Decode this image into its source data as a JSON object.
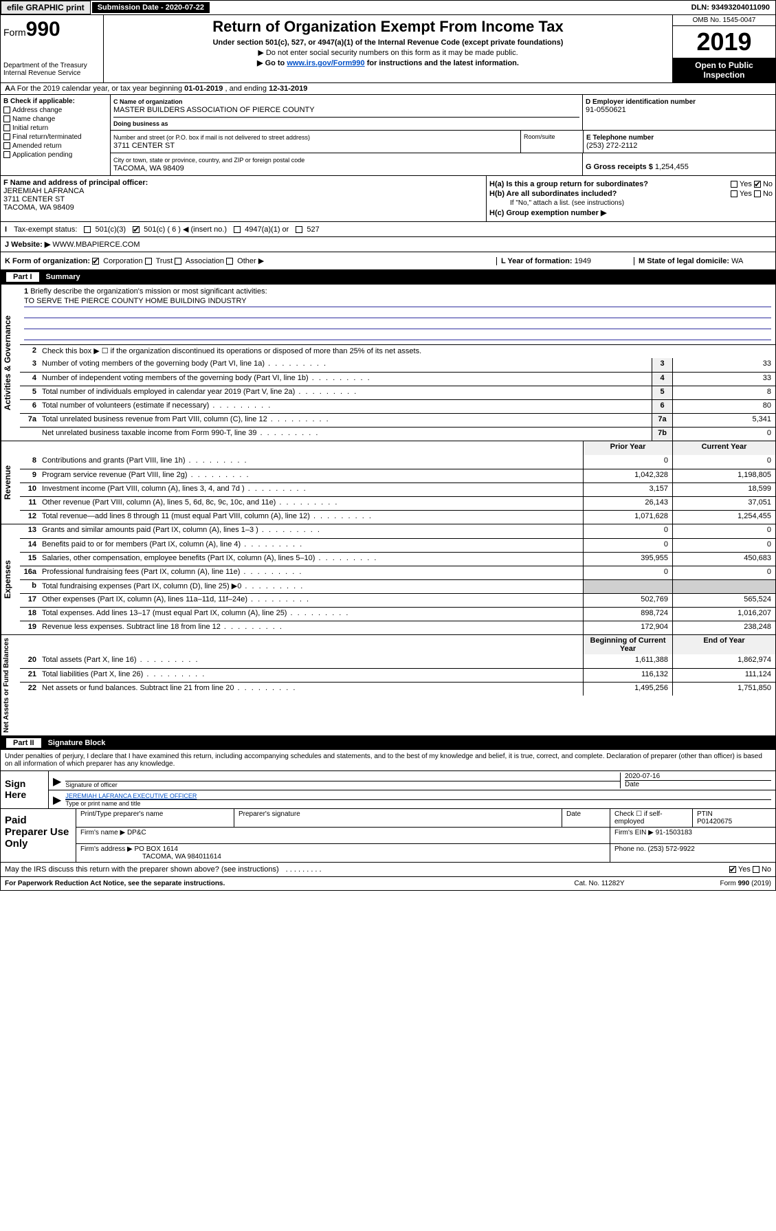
{
  "topbar": {
    "efile": "efile GRAPHIC print",
    "subdate_label": "Submission Date - 2020-07-22",
    "dln": "DLN: 93493204011090"
  },
  "header": {
    "form_prefix": "Form",
    "form_num": "990",
    "dept": "Department of the Treasury",
    "irs": "Internal Revenue Service",
    "title": "Return of Organization Exempt From Income Tax",
    "sub1": "Under section 501(c), 527, or 4947(a)(1) of the Internal Revenue Code (except private foundations)",
    "sub2": "▶ Do not enter social security numbers on this form as it may be made public.",
    "sub3_pre": "▶ Go to ",
    "sub3_link": "www.irs.gov/Form990",
    "sub3_post": " for instructions and the latest information.",
    "omb": "OMB No. 1545-0047",
    "year": "2019",
    "open1": "Open to Public",
    "open2": "Inspection"
  },
  "rowA": {
    "text_pre": "A For the 2019 calendar year, or tax year beginning ",
    "begin": "01-01-2019",
    "mid": " , and ending ",
    "end": "12-31-2019"
  },
  "colB": {
    "label": "B Check if applicable:",
    "opts": [
      "Address change",
      "Name change",
      "Initial return",
      "Final return/terminated",
      "Amended return",
      "Application pending"
    ]
  },
  "colC": {
    "name_lbl": "C Name of organization",
    "name": "MASTER BUILDERS ASSOCIATION OF PIERCE COUNTY",
    "dba_lbl": "Doing business as",
    "dba": "",
    "addr_lbl": "Number and street (or P.O. box if mail is not delivered to street address)",
    "addr": "3711 CENTER ST",
    "room_lbl": "Room/suite",
    "city_lbl": "City or town, state or province, country, and ZIP or foreign postal code",
    "city": "TACOMA, WA  98409"
  },
  "colD": {
    "ein_lbl": "D Employer identification number",
    "ein": "91-0550621",
    "tel_lbl": "E Telephone number",
    "tel": "(253) 272-2112",
    "gross_lbl": "G Gross receipts $ ",
    "gross": "1,254,455"
  },
  "rowF": {
    "lbl": "F Name and address of principal officer:",
    "name": "JEREMIAH LAFRANCA",
    "addr1": "3711 CENTER ST",
    "addr2": "TACOMA, WA  98409"
  },
  "rowH": {
    "ha": "H(a) Is this a group return for subordinates?",
    "hb": "H(b) Are all subordinates included?",
    "hb_note": "If \"No,\" attach a list. (see instructions)",
    "hc": "H(c) Group exemption number ▶"
  },
  "rowI": {
    "lbl": "Tax-exempt status:",
    "o1": "501(c)(3)",
    "o2": "501(c) ( 6 ) ◀ (insert no.)",
    "o3": "4947(a)(1) or",
    "o4": "527"
  },
  "rowJ": {
    "lbl": "J Website: ▶",
    "val": "WWW.MBAPIERCE.COM"
  },
  "rowK": {
    "lbl": "K Form of organization:",
    "opts": [
      "Corporation",
      "Trust",
      "Association",
      "Other ▶"
    ],
    "L_lbl": "L Year of formation: ",
    "L_val": "1949",
    "M_lbl": "M State of legal domicile: ",
    "M_val": "WA"
  },
  "part1": {
    "label": "Part I",
    "title": "Summary"
  },
  "summary": {
    "q1_lbl": "Briefly describe the organization's mission or most significant activities:",
    "q1_val": "TO SERVE THE PIERCE COUNTY HOME BUILDING INDUSTRY",
    "q2": "Check this box ▶ ☐ if the organization discontinued its operations or disposed of more than 25% of its net assets.",
    "rows_gov": [
      {
        "n": "3",
        "d": "Number of voting members of the governing body (Part VI, line 1a)",
        "c": "3",
        "v": "33"
      },
      {
        "n": "4",
        "d": "Number of independent voting members of the governing body (Part VI, line 1b)",
        "c": "4",
        "v": "33"
      },
      {
        "n": "5",
        "d": "Total number of individuals employed in calendar year 2019 (Part V, line 2a)",
        "c": "5",
        "v": "8"
      },
      {
        "n": "6",
        "d": "Total number of volunteers (estimate if necessary)",
        "c": "6",
        "v": "80"
      },
      {
        "n": "7a",
        "d": "Total unrelated business revenue from Part VIII, column (C), line 12",
        "c": "7a",
        "v": "5,341"
      },
      {
        "n": "",
        "d": "Net unrelated business taxable income from Form 990-T, line 39",
        "c": "7b",
        "v": "0"
      }
    ],
    "py_hdr": "Prior Year",
    "cy_hdr": "Current Year",
    "rows_rev": [
      {
        "n": "8",
        "d": "Contributions and grants (Part VIII, line 1h)",
        "py": "0",
        "cy": "0"
      },
      {
        "n": "9",
        "d": "Program service revenue (Part VIII, line 2g)",
        "py": "1,042,328",
        "cy": "1,198,805"
      },
      {
        "n": "10",
        "d": "Investment income (Part VIII, column (A), lines 3, 4, and 7d )",
        "py": "3,157",
        "cy": "18,599"
      },
      {
        "n": "11",
        "d": "Other revenue (Part VIII, column (A), lines 5, 6d, 8c, 9c, 10c, and 11e)",
        "py": "26,143",
        "cy": "37,051"
      },
      {
        "n": "12",
        "d": "Total revenue—add lines 8 through 11 (must equal Part VIII, column (A), line 12)",
        "py": "1,071,628",
        "cy": "1,254,455"
      }
    ],
    "rows_exp": [
      {
        "n": "13",
        "d": "Grants and similar amounts paid (Part IX, column (A), lines 1–3 )",
        "py": "0",
        "cy": "0"
      },
      {
        "n": "14",
        "d": "Benefits paid to or for members (Part IX, column (A), line 4)",
        "py": "0",
        "cy": "0"
      },
      {
        "n": "15",
        "d": "Salaries, other compensation, employee benefits (Part IX, column (A), lines 5–10)",
        "py": "395,955",
        "cy": "450,683"
      },
      {
        "n": "16a",
        "d": "Professional fundraising fees (Part IX, column (A), line 11e)",
        "py": "0",
        "cy": "0"
      },
      {
        "n": "b",
        "d": "Total fundraising expenses (Part IX, column (D), line 25) ▶0",
        "py": "",
        "cy": "",
        "grey": true
      },
      {
        "n": "17",
        "d": "Other expenses (Part IX, column (A), lines 11a–11d, 11f–24e)",
        "py": "502,769",
        "cy": "565,524"
      },
      {
        "n": "18",
        "d": "Total expenses. Add lines 13–17 (must equal Part IX, column (A), line 25)",
        "py": "898,724",
        "cy": "1,016,207"
      },
      {
        "n": "19",
        "d": "Revenue less expenses. Subtract line 18 from line 12",
        "py": "172,904",
        "cy": "238,248"
      }
    ],
    "by_hdr": "Beginning of Current Year",
    "ey_hdr": "End of Year",
    "rows_na": [
      {
        "n": "20",
        "d": "Total assets (Part X, line 16)",
        "py": "1,611,388",
        "cy": "1,862,974"
      },
      {
        "n": "21",
        "d": "Total liabilities (Part X, line 26)",
        "py": "116,132",
        "cy": "111,124"
      },
      {
        "n": "22",
        "d": "Net assets or fund balances. Subtract line 21 from line 20",
        "py": "1,495,256",
        "cy": "1,751,850"
      }
    ],
    "side_gov": "Activities & Governance",
    "side_rev": "Revenue",
    "side_exp": "Expenses",
    "side_na": "Net Assets or Fund Balances"
  },
  "part2": {
    "label": "Part II",
    "title": "Signature Block"
  },
  "perjury": "Under penalties of perjury, I declare that I have examined this return, including accompanying schedules and statements, and to the best of my knowledge and belief, it is true, correct, and complete. Declaration of preparer (other than officer) is based on all information of which preparer has any knowledge.",
  "sign": {
    "here": "Sign Here",
    "sig_lbl": "Signature of officer",
    "date_val": "2020-07-16",
    "date_lbl": "Date",
    "name": "JEREMIAH LAFRANCA  EXECUTIVE OFFICER",
    "name_lbl": "Type or print name and title"
  },
  "paid": {
    "title": "Paid Preparer Use Only",
    "h1": "Print/Type preparer's name",
    "h2": "Preparer's signature",
    "h3": "Date",
    "h4_chk": "Check ☐ if self-employed",
    "h5": "PTIN",
    "ptin": "P01420675",
    "firm_lbl": "Firm's name    ▶ ",
    "firm": "DP&C",
    "ein_lbl": "Firm's EIN ▶ ",
    "ein": "91-1503183",
    "addr_lbl": "Firm's address ▶ ",
    "addr1": "PO BOX 1614",
    "addr2": "TACOMA, WA  984011614",
    "phone_lbl": "Phone no. ",
    "phone": "(253) 572-9922"
  },
  "discuss": {
    "q": "May the IRS discuss this return with the preparer shown above? (see instructions)",
    "dots": ".  .  .  .  .  .  .  .  ."
  },
  "footer": {
    "l": "For Paperwork Reduction Act Notice, see the separate instructions.",
    "m": "Cat. No. 11282Y",
    "r": "Form 990 (2019)"
  }
}
